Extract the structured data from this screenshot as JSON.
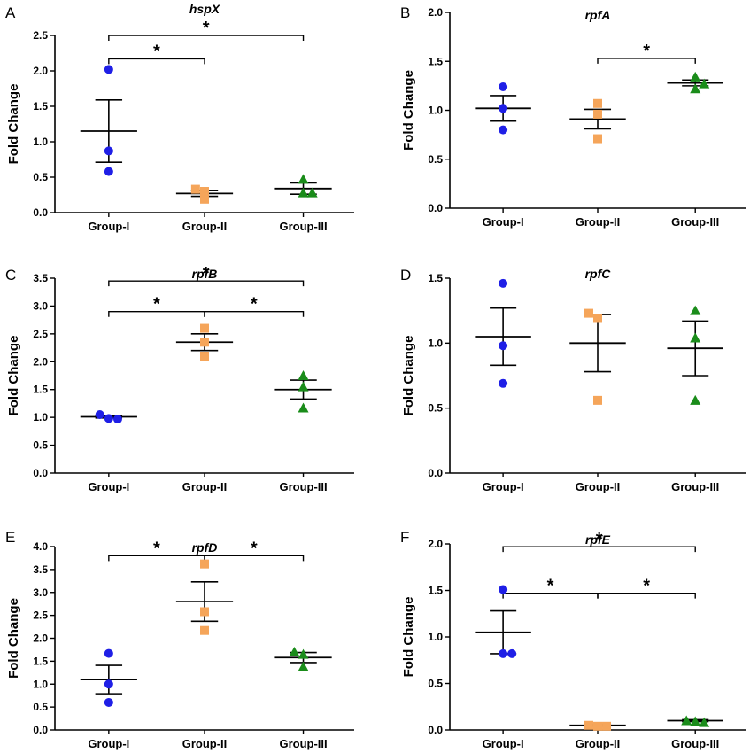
{
  "figure": {
    "markers": {
      "Group-I": "circle",
      "Group-II": "square",
      "Group-III": "triangle"
    },
    "colors": {
      "Group-I": "#1f1fe6",
      "Group-II": "#f5a55a",
      "Group-III": "#1a8c1a"
    }
  },
  "chart_data": [
    {
      "panel": "A",
      "type": "scatter",
      "title": "hspX",
      "xlabel": "",
      "ylabel": "Fold Change",
      "categories": [
        "Group-I",
        "Group-II",
        "Group-III"
      ],
      "ylim": [
        0,
        2.5
      ],
      "yticks": [
        "0.0",
        "0.5",
        "1.0",
        "1.5",
        "2.0",
        "2.5"
      ],
      "points": [
        [
          2.02,
          0.87,
          0.58
        ],
        [
          0.33,
          0.3,
          0.19
        ],
        [
          0.47,
          0.28,
          0.28
        ]
      ],
      "mean": [
        1.15,
        0.27,
        0.34
      ],
      "sem": [
        0.44,
        0.04,
        0.08
      ],
      "significance": [
        {
          "from": 0,
          "to": 1,
          "y": 2.17,
          "label": "*"
        },
        {
          "from": 0,
          "to": 2,
          "y": 2.5,
          "label": "*"
        }
      ]
    },
    {
      "panel": "B",
      "type": "scatter",
      "title": "rpfA",
      "xlabel": "",
      "ylabel": "Fold Change",
      "categories": [
        "Group-I",
        "Group-II",
        "Group-III"
      ],
      "ylim": [
        0,
        2.0
      ],
      "yticks": [
        "0.0",
        "0.5",
        "1.0",
        "1.5",
        "2.0"
      ],
      "points": [
        [
          1.24,
          1.02,
          0.8
        ],
        [
          1.07,
          0.96,
          0.71
        ],
        [
          1.34,
          1.22,
          1.27
        ]
      ],
      "mean": [
        1.02,
        0.91,
        1.28
      ],
      "sem": [
        0.13,
        0.1,
        0.03
      ],
      "significance": [
        {
          "from": 1,
          "to": 2,
          "y": 1.53,
          "label": "*"
        }
      ]
    },
    {
      "panel": "C",
      "type": "scatter",
      "title": "rpfB",
      "xlabel": "",
      "ylabel": "Fold Change",
      "categories": [
        "Group-I",
        "Group-II",
        "Group-III"
      ],
      "ylim": [
        0,
        3.5
      ],
      "yticks": [
        "0.0",
        "0.5",
        "1.0",
        "1.5",
        "2.0",
        "2.5",
        "3.0",
        "3.5"
      ],
      "points": [
        [
          1.05,
          0.98,
          0.97
        ],
        [
          2.6,
          2.35,
          2.1
        ],
        [
          1.75,
          1.55,
          1.17
        ]
      ],
      "mean": [
        1.01,
        2.35,
        1.5
      ],
      "sem": [
        0.02,
        0.15,
        0.17
      ],
      "significance": [
        {
          "from": 0,
          "to": 1,
          "y": 2.9,
          "label": "*"
        },
        {
          "from": 1,
          "to": 2,
          "y": 2.9,
          "label": "*"
        },
        {
          "from": 0,
          "to": 2,
          "y": 3.45,
          "label": "*"
        }
      ]
    },
    {
      "panel": "D",
      "type": "scatter",
      "title": "rpfC",
      "xlabel": "",
      "ylabel": "Fold Change",
      "categories": [
        "Group-I",
        "Group-II",
        "Group-III"
      ],
      "ylim": [
        0,
        1.5
      ],
      "yticks": [
        "0.0",
        "0.5",
        "1.0",
        "1.5"
      ],
      "points": [
        [
          1.46,
          0.98,
          0.69
        ],
        [
          1.23,
          1.19,
          0.56
        ],
        [
          1.25,
          1.04,
          0.56
        ]
      ],
      "mean": [
        1.05,
        1.0,
        0.96
      ],
      "sem": [
        0.22,
        0.22,
        0.21
      ],
      "significance": []
    },
    {
      "panel": "E",
      "type": "scatter",
      "title": "rpfD",
      "xlabel": "",
      "ylabel": "Fold Change",
      "categories": [
        "Group-I",
        "Group-II",
        "Group-III"
      ],
      "ylim": [
        0,
        4.0
      ],
      "yticks": [
        "0.0",
        "0.5",
        "1.0",
        "1.5",
        "2.0",
        "2.5",
        "3.0",
        "3.5",
        "4.0"
      ],
      "points": [
        [
          1.67,
          1.0,
          0.6
        ],
        [
          3.62,
          2.58,
          2.17
        ],
        [
          1.7,
          1.65,
          1.38
        ]
      ],
      "mean": [
        1.1,
        2.8,
        1.58
      ],
      "sem": [
        0.31,
        0.43,
        0.11
      ],
      "significance": [
        {
          "from": 0,
          "to": 1,
          "y": 3.8,
          "label": "*"
        },
        {
          "from": 1,
          "to": 2,
          "y": 3.8,
          "label": "*"
        }
      ]
    },
    {
      "panel": "F",
      "type": "scatter",
      "title": "rpfE",
      "xlabel": "",
      "ylabel": "Fold Change",
      "categories": [
        "Group-I",
        "Group-II",
        "Group-III"
      ],
      "ylim": [
        0,
        2.0
      ],
      "yticks": [
        "0.0",
        "0.5",
        "1.0",
        "1.5",
        "2.0"
      ],
      "points": [
        [
          1.51,
          0.82,
          0.82
        ],
        [
          0.05,
          0.04,
          0.04
        ],
        [
          0.1,
          0.09,
          0.08
        ]
      ],
      "mean": [
        1.05,
        0.05,
        0.1
      ],
      "sem": [
        0.23,
        0.01,
        0.01
      ],
      "significance": [
        {
          "from": 0,
          "to": 1,
          "y": 1.47,
          "label": "*"
        },
        {
          "from": 1,
          "to": 2,
          "y": 1.47,
          "label": "*"
        },
        {
          "from": 0,
          "to": 2,
          "y": 1.97,
          "label": "*"
        }
      ]
    }
  ]
}
